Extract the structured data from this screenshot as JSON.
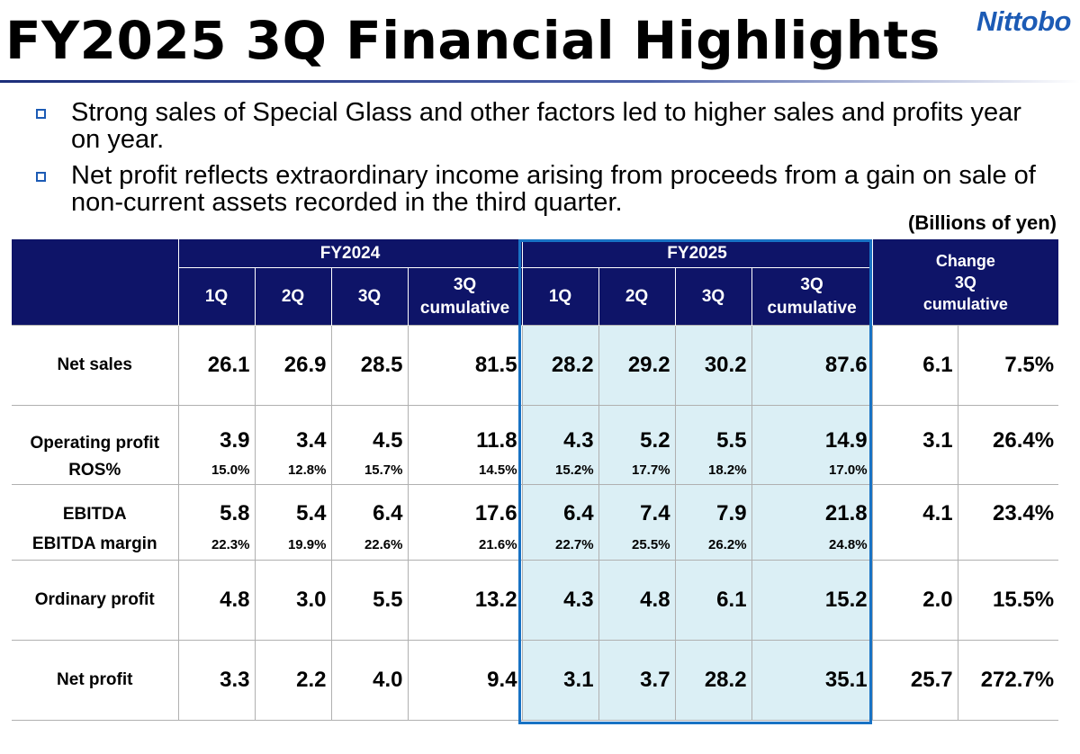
{
  "header": {
    "title": "FY2025 3Q Financial Highlights",
    "logo": "Nittobo"
  },
  "bullets": [
    "Strong sales of Special Glass and other factors led to higher sales and profits year on year.",
    "Net profit reflects extraordinary income arising from proceeds from a gain on sale of non-current assets recorded in the third quarter."
  ],
  "units": "(Billions of yen)",
  "colors": {
    "header_bg": "#0e1468",
    "highlight_bg": "#dbeff5",
    "highlight_border": "#1872c4",
    "bullet_marker": "#1c5bb5"
  },
  "table": {
    "fy2024": "FY2024",
    "fy2025": "FY2025",
    "q1": "1Q",
    "q2": "2Q",
    "q3": "3Q",
    "cum_a": "3Q",
    "cum_b": "cumulative",
    "change_a": "Change",
    "change_b": "3Q",
    "change_c": "cumulative",
    "net_sales": {
      "label": "Net sales",
      "fy24": [
        "26.1",
        "26.9",
        "28.5",
        "81.5"
      ],
      "fy25": [
        "28.2",
        "29.2",
        "30.2",
        "87.6"
      ],
      "chg": "6.1",
      "chg_pct": "7.5%"
    },
    "operating_profit": {
      "label": "Operating profit",
      "fy24": [
        "3.9",
        "3.4",
        "4.5",
        "11.8"
      ],
      "fy25": [
        "4.3",
        "5.2",
        "5.5",
        "14.9"
      ],
      "chg": "3.1",
      "chg_pct": "26.4%"
    },
    "ros": {
      "label": "ROS%",
      "fy24": [
        "15.0%",
        "12.8%",
        "15.7%",
        "14.5%"
      ],
      "fy25": [
        "15.2%",
        "17.7%",
        "18.2%",
        "17.0%"
      ]
    },
    "ebitda": {
      "label": "EBITDA",
      "fy24": [
        "5.8",
        "5.4",
        "6.4",
        "17.6"
      ],
      "fy25": [
        "6.4",
        "7.4",
        "7.9",
        "21.8"
      ],
      "chg": "4.1",
      "chg_pct": "23.4%"
    },
    "ebitda_margin": {
      "label": "EBITDA margin",
      "fy24": [
        "22.3%",
        "19.9%",
        "22.6%",
        "21.6%"
      ],
      "fy25": [
        "22.7%",
        "25.5%",
        "26.2%",
        "24.8%"
      ]
    },
    "ordinary_profit": {
      "label": "Ordinary profit",
      "fy24": [
        "4.8",
        "3.0",
        "5.5",
        "13.2"
      ],
      "fy25": [
        "4.3",
        "4.8",
        "6.1",
        "15.2"
      ],
      "chg": "2.0",
      "chg_pct": "15.5%"
    },
    "net_profit": {
      "label": "Net profit",
      "fy24": [
        "3.3",
        "2.2",
        "4.0",
        "9.4"
      ],
      "fy25": [
        "3.1",
        "3.7",
        "28.2",
        "35.1"
      ],
      "chg": "25.7",
      "chg_pct": "272.7%"
    }
  }
}
